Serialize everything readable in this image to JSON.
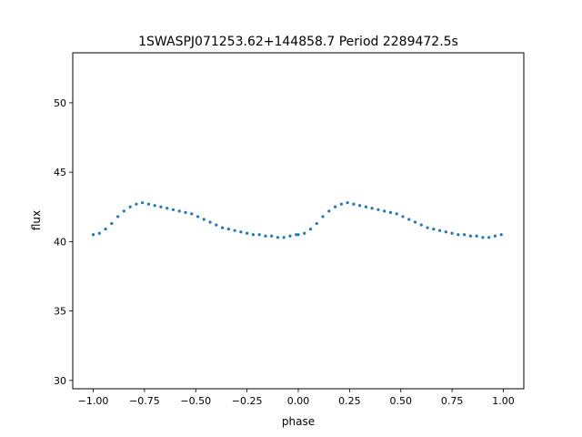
{
  "chart_data": {
    "type": "scatter",
    "title": "1SWASPJ071253.62+144858.7 Period 2289472.5s",
    "xlabel": "phase",
    "ylabel": "flux",
    "xlim": [
      -1.1,
      1.1
    ],
    "ylim": [
      29.4,
      53.6
    ],
    "xticks": [
      -1.0,
      -0.75,
      -0.5,
      -0.25,
      0.0,
      0.25,
      0.5,
      0.75,
      1.0
    ],
    "xtick_labels": [
      "−1.00",
      "−0.75",
      "−0.50",
      "−0.25",
      "0.00",
      "0.25",
      "0.50",
      "0.75",
      "1.00"
    ],
    "yticks": [
      30,
      35,
      40,
      45,
      50
    ],
    "ytick_labels": [
      "30",
      "35",
      "40",
      "45",
      "50"
    ],
    "grid": false,
    "marker_color": "#1f77b4",
    "series": [
      {
        "description_points": "phase-folded light curve, repeated over two cycles",
        "x": [
          -1.0,
          -0.97,
          -0.94,
          -0.91,
          -0.88,
          -0.85,
          -0.82,
          -0.79,
          -0.76,
          -0.73,
          -0.7,
          -0.67,
          -0.64,
          -0.61,
          -0.58,
          -0.55,
          -0.52,
          -0.49,
          -0.46,
          -0.43,
          -0.4,
          -0.37,
          -0.34,
          -0.31,
          -0.28,
          -0.25,
          -0.22,
          -0.19,
          -0.16,
          -0.13,
          -0.1,
          -0.07,
          -0.04,
          -0.01,
          0.0,
          0.03,
          0.06,
          0.09,
          0.12,
          0.15,
          0.18,
          0.21,
          0.24,
          0.27,
          0.3,
          0.33,
          0.36,
          0.39,
          0.42,
          0.45,
          0.48,
          0.51,
          0.54,
          0.57,
          0.6,
          0.63,
          0.66,
          0.69,
          0.72,
          0.75,
          0.78,
          0.81,
          0.84,
          0.87,
          0.9,
          0.93,
          0.96,
          0.99
        ],
        "y": [
          40.5,
          40.6,
          40.9,
          41.3,
          41.8,
          42.2,
          42.5,
          42.7,
          42.8,
          42.7,
          42.6,
          42.5,
          42.4,
          42.3,
          42.2,
          42.1,
          42.0,
          41.8,
          41.6,
          41.4,
          41.2,
          41.0,
          40.9,
          40.8,
          40.7,
          40.6,
          40.5,
          40.5,
          40.4,
          40.4,
          40.3,
          40.3,
          40.4,
          40.5,
          40.5,
          40.6,
          40.9,
          41.3,
          41.8,
          42.2,
          42.5,
          42.7,
          42.8,
          42.7,
          42.6,
          42.5,
          42.4,
          42.3,
          42.2,
          42.1,
          42.0,
          41.8,
          41.6,
          41.4,
          41.2,
          41.0,
          40.9,
          40.8,
          40.7,
          40.6,
          40.5,
          40.5,
          40.4,
          40.4,
          40.3,
          40.3,
          40.4,
          40.5
        ]
      }
    ]
  }
}
